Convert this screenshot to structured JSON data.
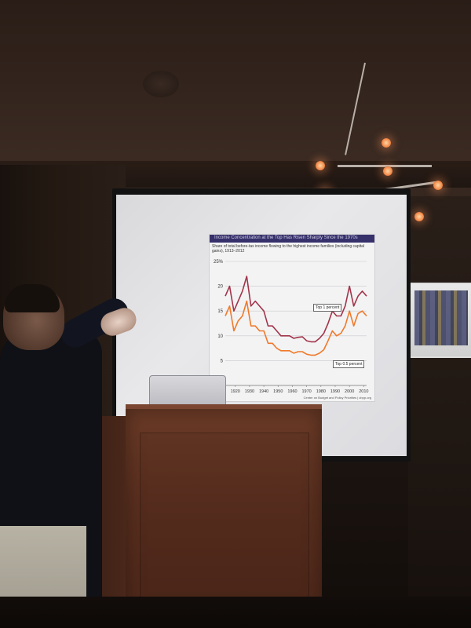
{
  "slide": {
    "header_text": "Income Concentration at the Top Has Risen Sharply Since the 1970s",
    "subtitle_text": "Share of total before-tax income flowing to the highest income families (including capital gains), 1913–2012",
    "callout_top1": "Top 1 percent",
    "callout_top05": "Top 0.5 percent",
    "source_text": "Center on Budget and Policy Priorities | cbpp.org"
  },
  "chart_data": {
    "type": "line",
    "title": "Income Concentration at the Top Has Risen Sharply Since the 1970s",
    "subtitle": "Share of total before-tax income flowing to the highest income families (including capital gains), 1913–2012",
    "xlabel": "",
    "ylabel": "",
    "x": [
      1913,
      1916,
      1919,
      1922,
      1925,
      1928,
      1931,
      1934,
      1937,
      1940,
      1943,
      1946,
      1949,
      1952,
      1955,
      1958,
      1961,
      1964,
      1967,
      1970,
      1973,
      1976,
      1979,
      1982,
      1985,
      1988,
      1991,
      1994,
      1997,
      2000,
      2003,
      2006,
      2009,
      2012
    ],
    "series": [
      {
        "name": "Top 1 percent",
        "color": "#a2344a",
        "values": [
          18,
          20,
          15,
          17,
          19,
          22,
          16,
          17,
          16,
          15,
          12,
          12,
          11,
          10,
          10,
          10,
          9.5,
          9.7,
          9.8,
          9,
          8.8,
          8.8,
          9.5,
          10.5,
          12.5,
          15,
          14,
          14,
          16,
          20,
          16,
          18,
          19,
          18
        ]
      },
      {
        "name": "Top 0.5 percent",
        "color": "#f07a2a",
        "values": [
          14,
          16,
          11,
          13,
          14,
          17,
          12,
          12,
          11,
          11,
          8.5,
          8.5,
          7.5,
          7,
          7,
          7,
          6.5,
          6.8,
          6.8,
          6.3,
          6.1,
          6.1,
          6.5,
          7.2,
          9,
          11,
          10,
          10.5,
          12,
          15,
          12,
          14.5,
          15,
          14
        ]
      }
    ],
    "ylim": [
      0,
      25
    ],
    "yticks": [
      5,
      10,
      15,
      20,
      25
    ],
    "ytick_labels": [
      "5",
      "10",
      "15",
      "20",
      "25%"
    ],
    "xticks": [
      1920,
      1930,
      1940,
      1950,
      1960,
      1970,
      1980,
      1990,
      2000,
      2010
    ],
    "xtick_labels": [
      "1920",
      "1930",
      "1940",
      "1950",
      "1960",
      "1970",
      "1980",
      "1990",
      "2000",
      "2010"
    ],
    "grid": true,
    "legend": "callout labels on lines"
  }
}
